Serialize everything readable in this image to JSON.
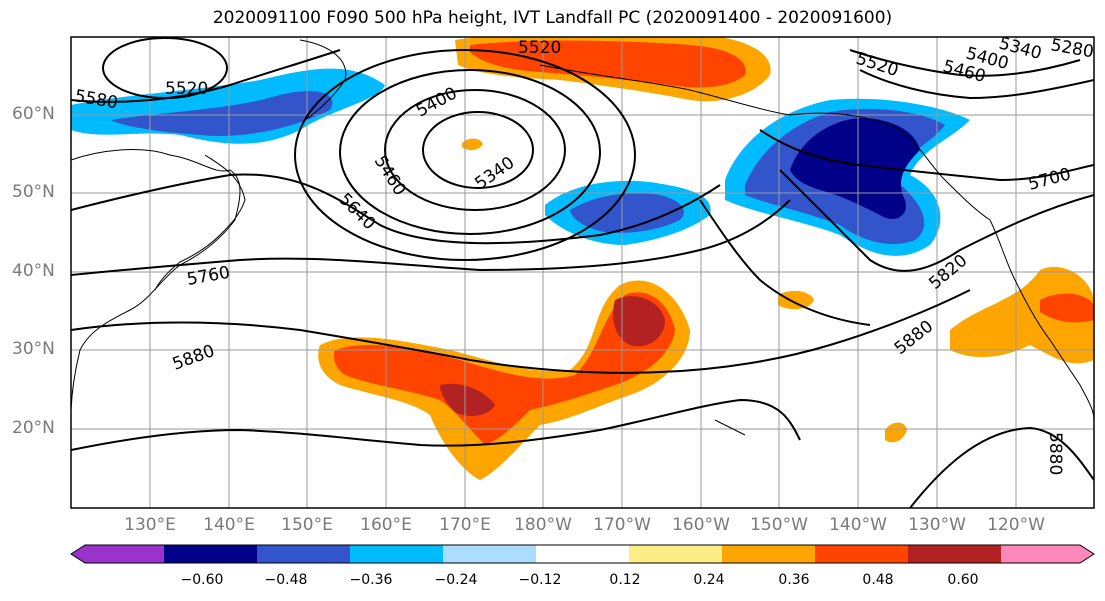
{
  "title": "2020091100 F090 500 hPa height, IVT Landfall PC (2020091400 - 2020091600)",
  "lat_labels": [
    "60°N",
    "50°N",
    "40°N",
    "30°N",
    "20°N"
  ],
  "lon_labels": [
    "130°E",
    "140°E",
    "150°E",
    "160°E",
    "170°E",
    "180°W",
    "170°W",
    "160°W",
    "150°W",
    "140°W",
    "130°W",
    "120°W"
  ],
  "contour_labels": [
    "5520",
    "5520",
    "5400",
    "5340",
    "5460",
    "5640",
    "5760",
    "5880",
    "5580",
    "5520",
    "5460",
    "5400",
    "5340",
    "5280",
    "5700",
    "5820",
    "5880",
    "5880"
  ],
  "colorbar": {
    "tick_labels": [
      "−0.60",
      "−0.48",
      "−0.36",
      "−0.24",
      "−0.12",
      "0.12",
      "0.24",
      "0.36",
      "0.48",
      "0.60"
    ],
    "colors": [
      "#9933cc",
      "#000088",
      "#3355cc",
      "#00bbff",
      "#aaddff",
      "#ffffff",
      "#ffee88",
      "#ffa500",
      "#ff4400",
      "#b22222",
      "#ff88bb"
    ]
  }
}
